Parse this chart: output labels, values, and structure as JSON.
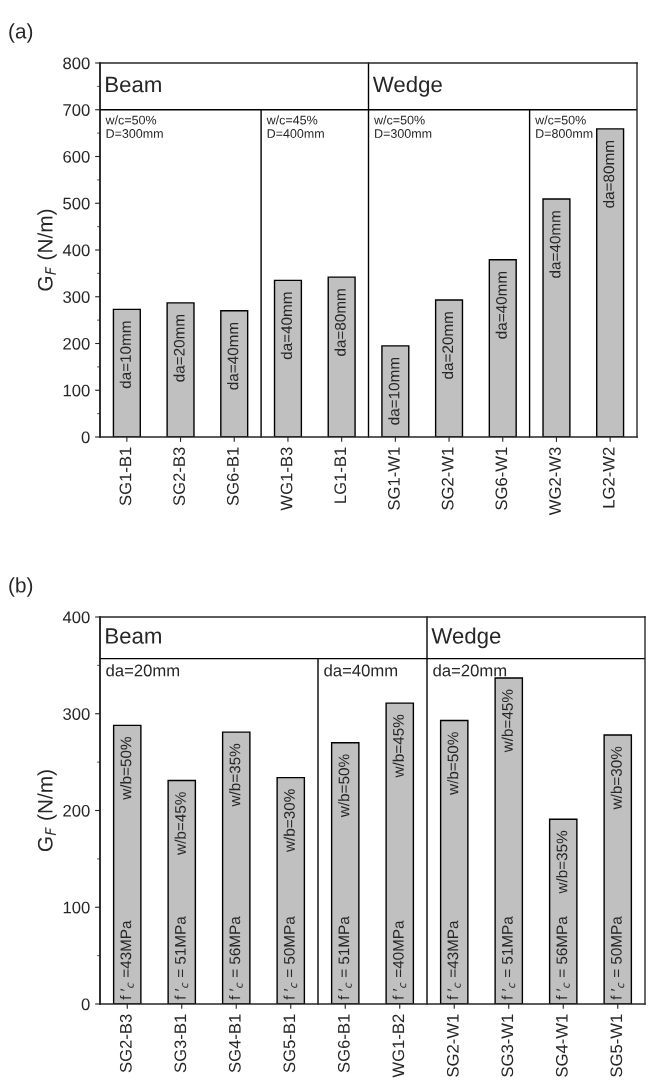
{
  "chart_data": [
    {
      "type": "bar",
      "title": "(a)",
      "ylabel": "G$_{F}$ (N/m)",
      "categories": [
        "SG1-B1",
        "SG2-B3",
        "SG6-B1",
        "WG1-B3",
        "LG1-B1",
        "SG1-W1",
        "SG2-W1",
        "SG6-W1",
        "WG2-W3",
        "LG2-W2"
      ],
      "values": [
        273,
        287,
        270,
        335,
        342,
        195,
        293,
        379,
        509,
        659
      ],
      "color": "#c0c0c0",
      "ylim": [
        0,
        800
      ],
      "yticks": [
        0,
        100,
        200,
        300,
        400,
        500,
        600,
        700,
        800
      ],
      "ref_lines": [
        {
          "axis": "y",
          "value": 700
        }
      ],
      "annotations": [
        "Beam",
        "Wedge",
        {
          "text": "w/c=50%\nD=300mm",
          "x": "SG1-B1",
          "y": 700
        },
        {
          "text": "w/c=45%\nD=400mm",
          "x": "WG1-B3",
          "y": 700
        },
        {
          "text": "w/c=50%\nD=300mm",
          "x": "SG1-W1",
          "y": 700
        },
        {
          "text": "w/c=50%\nD=800mm",
          "x": "WG2-W3",
          "y": 700
        },
        {
          "text": "da=10mm",
          "x": "SG1-B1",
          "y": 273
        },
        {
          "text": "da=20mm",
          "x": "SG2-B3",
          "y": 287
        },
        {
          "text": "da=40mm",
          "x": "SG6-B1",
          "y": 270
        },
        {
          "text": "da=40mm",
          "x": "WG1-B3",
          "y": 335
        },
        {
          "text": "da=80mm",
          "x": "LG1-B1",
          "y": 342
        },
        {
          "text": "da=10mm",
          "x": "SG1-W1",
          "y": 195
        },
        {
          "text": "da=20mm",
          "x": "SG2-W1",
          "y": 293
        },
        {
          "text": "da=40mm",
          "x": "SG6-W1",
          "y": 379
        },
        {
          "text": "da=40mm",
          "x": "WG2-W3",
          "y": 509
        },
        {
          "text": "da=80mm",
          "x": "LG2-W2",
          "y": 659
        }
      ]
    },
    {
      "type": "bar",
      "title": "(b)",
      "ylabel": "G$_{F}$ (N/m)",
      "categories": [
        "SG2-B3",
        "SG3-B1",
        "SG4-B1",
        "SG5-B1",
        "SG6-B1",
        "WG1-B2",
        "SG2-W1",
        "SG3-W1",
        "SG4-W1",
        "SG5-W1"
      ],
      "values": [
        288,
        231,
        281,
        234,
        270,
        311,
        293,
        337,
        191,
        278
      ],
      "color": "#c0c0c0",
      "ylim": [
        0,
        400
      ],
      "yticks": [
        0,
        100,
        200,
        300,
        400
      ],
      "ref_lines": [
        {
          "axis": "y",
          "value": 357
        }
      ],
      "annotations": [
        "Beam",
        "Wedge",
        {
          "text": "da=20mm",
          "x": "SG2-B3",
          "y": 357
        },
        {
          "text": "da=40mm",
          "x": "SG6-B1",
          "y": 357
        },
        {
          "text": "da=20mm",
          "x": "SG2-W1",
          "y": 357
        },
        {
          "text": "w/b=50%",
          "x": "SG2-B3",
          "y": 288
        },
        {
          "text": "w/b=45%",
          "x": "SG3-B1",
          "y": 231
        },
        {
          "text": "w/b=35%",
          "x": "SG4-B1",
          "y": 281
        },
        {
          "text": "w/b=30%",
          "x": "SG5-B1",
          "y": 234
        },
        {
          "text": "w/b=50%",
          "x": "SG6-B1",
          "y": 270
        },
        {
          "text": "w/b=45%",
          "x": "WG1-B2",
          "y": 311
        },
        {
          "text": "w/b=50%",
          "x": "SG2-W1",
          "y": 293
        },
        {
          "text": "w/b=45%",
          "x": "SG3-W1",
          "y": 337
        },
        {
          "text": "w/b=35%",
          "x": "SG4-W1",
          "y": 191
        },
        {
          "text": "w/b=30%",
          "x": "SG5-W1",
          "y": 278
        },
        {
          "text": "f ′$_{c}$ =43MPa",
          "x": "SG2-B3",
          "y": 0
        },
        {
          "text": "f ′$_{c}$ = 51MPa",
          "x": "SG3-B1",
          "y": 0
        },
        {
          "text": "f ′$_{c}$ = 56MPa",
          "x": "SG4-B1",
          "y": 0
        },
        {
          "text": "f ′$_{c}$ = 50MPa",
          "x": "SG5-B1",
          "y": 0
        },
        {
          "text": "f ′$_{c}$ = 51MPa",
          "x": "SG6-B1",
          "y": 0
        },
        {
          "text": "f ′$_{c}$ =40MPa",
          "x": "WG1-B2",
          "y": 0
        },
        {
          "text": "f ′$_{c}$ =43MPa",
          "x": "SG2-W1",
          "y": 0
        },
        {
          "text": "f ′$_{c}$ = 51MPa",
          "x": "SG3-W1",
          "y": 0
        },
        {
          "text": "f ′$_{c}$ = 56MPa",
          "x": "SG4-W1",
          "y": 0
        },
        {
          "text": "f ′$_{c}$ = 50MPa",
          "x": "SG5-W1",
          "y": 0
        }
      ]
    }
  ]
}
